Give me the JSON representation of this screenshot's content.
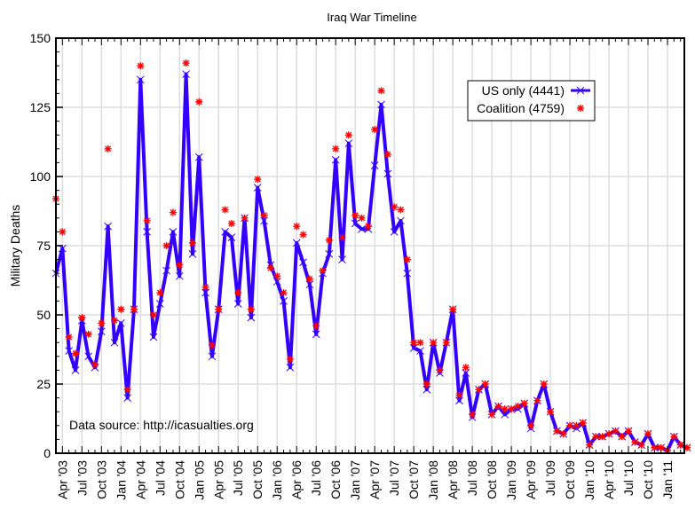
{
  "chart_data": {
    "type": "line",
    "title": "Iraq War Timeline",
    "xlabel": "",
    "ylabel": "Military Deaths",
    "ylim": [
      0,
      150
    ],
    "yticks": [
      0,
      25,
      50,
      75,
      100,
      125,
      150
    ],
    "grid": true,
    "legend_position": "top-right",
    "annotation": "Data source: http://icasualties.org",
    "x_start": "Mar '03",
    "x_tick_labels": [
      "Apr '03",
      "Jul '03",
      "Oct '03",
      "Jan '04",
      "Apr '04",
      "Jul '04",
      "Oct '04",
      "Jan '05",
      "Apr '05",
      "Jul '05",
      "Oct '05",
      "Jan '06",
      "Apr '06",
      "Jul '06",
      "Oct '06",
      "Jan '07",
      "Apr '07",
      "Jul '07",
      "Oct '07",
      "Jan '08",
      "Apr '08",
      "Jul '08",
      "Oct '08",
      "Jan '09",
      "Apr '09",
      "Jul '09",
      "Oct '09",
      "Jan '10",
      "Apr '10",
      "Jul '10",
      "Oct '10",
      "Jan '11"
    ],
    "series": [
      {
        "name": "US only (4441)",
        "style": "line-with-x-markers",
        "color": "#3300ff",
        "values": [
          65,
          74,
          37,
          30,
          48,
          35,
          31,
          44,
          82,
          40,
          47,
          20,
          52,
          135,
          80,
          42,
          54,
          66,
          80,
          64,
          137,
          72,
          107,
          58,
          35,
          52,
          80,
          78,
          54,
          85,
          49,
          96,
          84,
          68,
          62,
          55,
          31,
          76,
          69,
          61,
          43,
          65,
          72,
          106,
          70,
          112,
          83,
          81,
          81,
          104,
          126,
          101,
          80,
          84,
          65,
          38,
          37,
          23,
          40,
          29,
          40,
          52,
          19,
          29,
          13,
          23,
          25,
          14,
          17,
          14,
          16,
          16,
          18,
          9,
          19,
          25,
          15,
          8,
          7,
          10,
          9,
          11,
          3,
          6,
          6,
          7,
          8,
          6,
          8,
          4,
          3,
          7,
          2,
          2,
          1,
          6,
          3,
          2
        ]
      },
      {
        "name": "Coalition (4759)",
        "style": "markers-asterisk",
        "color": "#ff0000",
        "values": [
          92,
          80,
          42,
          36,
          49,
          43,
          32,
          47,
          110,
          48,
          52,
          23,
          52,
          140,
          84,
          50,
          58,
          75,
          87,
          68,
          141,
          76,
          127,
          60,
          39,
          52,
          88,
          83,
          58,
          85,
          52,
          99,
          86,
          67,
          64,
          58,
          34,
          82,
          79,
          63,
          46,
          66,
          77,
          110,
          78,
          115,
          86,
          85,
          82,
          117,
          131,
          108,
          89,
          88,
          70,
          40,
          40,
          25,
          40,
          30,
          40,
          52,
          21,
          31,
          14,
          23,
          25,
          14,
          17,
          16,
          16,
          17,
          18,
          10,
          19,
          25,
          15,
          8,
          7,
          10,
          10,
          11,
          3,
          6,
          6,
          7,
          8,
          6,
          8,
          4,
          3,
          7,
          2,
          2,
          1,
          6,
          3,
          2
        ]
      }
    ]
  },
  "legend": {
    "us_label": "US only (4441)",
    "coalition_label": "Coalition (4759)"
  }
}
